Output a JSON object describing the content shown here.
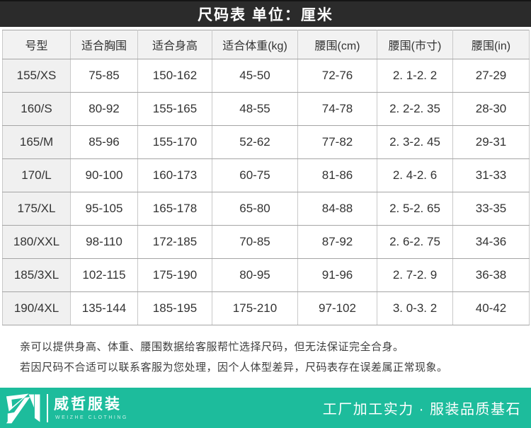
{
  "title_bar": {
    "title": "尺码表 单位：厘米"
  },
  "table": {
    "headers": [
      "号型",
      "适合胸围",
      "适合身高",
      "适合体重(kg)",
      "腰围(cm)",
      "腰围(市寸)",
      "腰围(in)"
    ],
    "rows": [
      [
        "155/XS",
        "75-85",
        "150-162",
        "45-50",
        "72-76",
        "2. 1-2. 2",
        "27-29"
      ],
      [
        "160/S",
        "80-92",
        "155-165",
        "48-55",
        "74-78",
        "2. 2-2. 35",
        "28-30"
      ],
      [
        "165/M",
        "85-96",
        "155-170",
        "52-62",
        "77-82",
        "2. 3-2. 45",
        "29-31"
      ],
      [
        "170/L",
        "90-100",
        "160-173",
        "60-75",
        "81-86",
        "2. 4-2. 6",
        "31-33"
      ],
      [
        "175/XL",
        "95-105",
        "165-178",
        "65-80",
        "84-88",
        "2. 5-2. 65",
        "33-35"
      ],
      [
        "180/XXL",
        "98-110",
        "172-185",
        "70-85",
        "87-92",
        "2. 6-2. 75",
        "34-36"
      ],
      [
        "185/3XL",
        "102-115",
        "175-190",
        "80-95",
        "91-96",
        "2. 7-2. 9",
        "36-38"
      ],
      [
        "190/4XL",
        "135-144",
        "185-195",
        "175-210",
        "97-102",
        "3. 0-3. 2",
        "40-42"
      ]
    ]
  },
  "notes": {
    "line1": "亲可以提供身高、体重、腰围数据给客服帮忙选择尺码，但无法保证完全合身。",
    "line2": "若因尺码不合适可以联系客服为您处理，因个人体型差异，尺码表存在误差属正常现象。"
  },
  "footer": {
    "brand_name": "威哲服装",
    "brand_sub": "WEIZHE CLOTHING",
    "slogan": "工厂加工实力 ·  服装品质基石",
    "logo_icon": "zn-monogram-icon",
    "colors": {
      "bar_green": "#1dbc9c",
      "title_black": "#2b2b2b",
      "cell_gray": "#f0f0f0"
    }
  }
}
